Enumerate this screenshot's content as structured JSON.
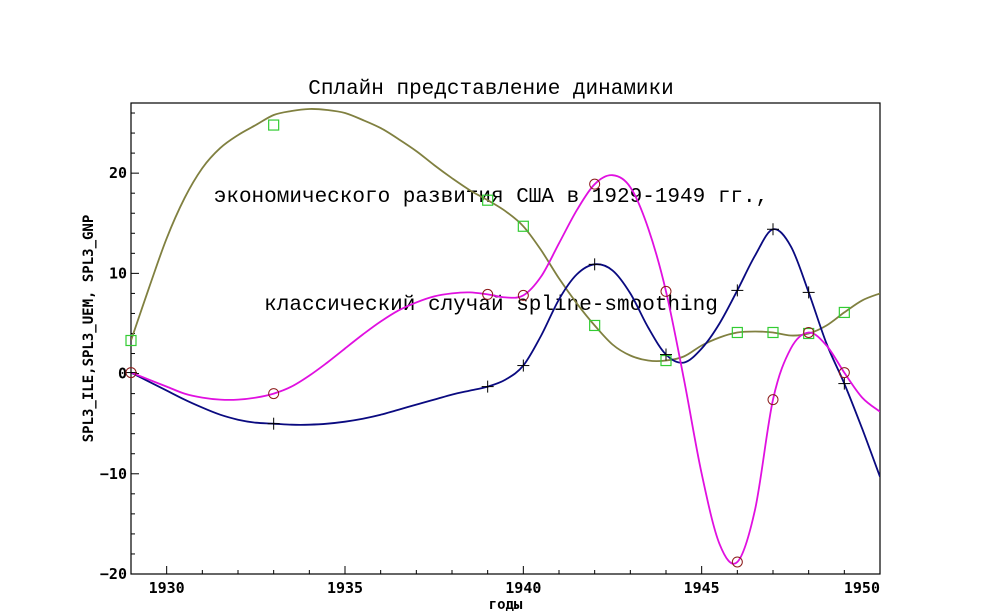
{
  "chart_data": {
    "type": "line",
    "title_lines": [
      "Сплайн представление динамики",
      "экономического развития США в 1929-1949 гг.,",
      "классический случай spline-smoothing"
    ],
    "xlabel": "годы",
    "ylabel": "SPL3_ILE,SPL3_UEM, SPL3_GNP",
    "xlim": [
      1929,
      1950
    ],
    "ylim": [
      -20,
      27
    ],
    "x_ticks": [
      1930,
      1935,
      1940,
      1945,
      1950
    ],
    "y_ticks": [
      -20,
      -10,
      0,
      10,
      20
    ],
    "y_tick_labels": [
      "−20",
      "−10",
      "0",
      "10",
      "20"
    ],
    "grid": false,
    "series": [
      {
        "color": "#808040",
        "marker": "square",
        "marker_color": "#33cc33",
        "markers_x": [
          1929,
          1933,
          1939,
          1940,
          1942,
          1944,
          1946,
          1947,
          1948,
          1949
        ],
        "markers_y": [
          3.3,
          24.8,
          17.3,
          14.7,
          4.8,
          1.3,
          4.1,
          4.1,
          4.0,
          6.1
        ],
        "curve_x": [
          1929,
          1929.5,
          1930,
          1930.5,
          1931,
          1931.5,
          1932,
          1932.5,
          1933,
          1933.5,
          1934,
          1934.5,
          1935,
          1935.5,
          1936,
          1936.5,
          1937,
          1937.5,
          1938,
          1938.5,
          1939,
          1939.5,
          1940,
          1940.5,
          1941,
          1941.5,
          1942,
          1942.5,
          1943,
          1943.5,
          1944,
          1944.5,
          1945,
          1945.5,
          1946,
          1946.5,
          1947,
          1947.5,
          1948,
          1948.5,
          1949,
          1949.5,
          1950
        ],
        "curve_y": [
          3.3,
          8.5,
          13.5,
          17.5,
          20.5,
          22.5,
          23.8,
          24.8,
          25.8,
          26.2,
          26.4,
          26.3,
          26.0,
          25.3,
          24.5,
          23.4,
          22.2,
          20.8,
          19.5,
          18.3,
          17.3,
          16.2,
          14.7,
          12.3,
          9.5,
          7.0,
          4.8,
          2.9,
          1.8,
          1.3,
          1.3,
          1.7,
          2.8,
          3.6,
          4.1,
          4.2,
          4.1,
          3.8,
          4.0,
          4.8,
          6.1,
          7.3,
          8.0
        ]
      },
      {
        "color": "#0a0a80",
        "marker": "plus",
        "marker_color": "#000000",
        "markers_x": [
          1929,
          1933,
          1939,
          1940,
          1942,
          1944,
          1946,
          1947,
          1948,
          1949
        ],
        "markers_y": [
          0.1,
          -5.0,
          -1.3,
          0.8,
          10.9,
          1.9,
          8.3,
          14.4,
          8.1,
          -1.0
        ],
        "curve_x": [
          1929,
          1929.5,
          1930,
          1930.5,
          1931,
          1931.5,
          1932,
          1932.5,
          1933,
          1933.5,
          1934,
          1934.5,
          1935,
          1935.5,
          1936,
          1936.5,
          1937,
          1937.5,
          1938,
          1938.5,
          1939,
          1939.5,
          1940,
          1940.5,
          1941,
          1941.5,
          1942,
          1942.5,
          1943,
          1943.5,
          1944,
          1944.5,
          1945,
          1945.5,
          1946,
          1946.5,
          1947,
          1947.5,
          1948,
          1948.5,
          1949,
          1949.5,
          1950
        ],
        "curve_y": [
          0.1,
          -0.8,
          -1.7,
          -2.6,
          -3.4,
          -4.1,
          -4.6,
          -4.9,
          -5.0,
          -5.1,
          -5.1,
          -5.0,
          -4.8,
          -4.5,
          -4.1,
          -3.6,
          -3.1,
          -2.6,
          -2.1,
          -1.7,
          -1.3,
          -0.6,
          0.8,
          3.8,
          7.4,
          9.9,
          10.9,
          10.3,
          8.0,
          4.6,
          1.9,
          1.1,
          2.5,
          5.0,
          8.3,
          11.8,
          14.4,
          12.7,
          8.1,
          3.0,
          -1.0,
          -5.5,
          -10.3
        ]
      },
      {
        "color": "#e010e0",
        "marker": "circle",
        "marker_color": "#8b1a1a",
        "markers_x": [
          1929,
          1933,
          1939,
          1940,
          1942,
          1944,
          1946,
          1947,
          1948,
          1949
        ],
        "markers_y": [
          0.1,
          -2.0,
          7.9,
          7.8,
          18.9,
          8.2,
          -18.8,
          -2.6,
          4.1,
          0.1
        ],
        "curve_x": [
          1929,
          1929.5,
          1930,
          1930.5,
          1931,
          1931.5,
          1932,
          1932.5,
          1933,
          1933.5,
          1934,
          1934.5,
          1935,
          1935.5,
          1936,
          1936.5,
          1937,
          1937.5,
          1938,
          1938.5,
          1939,
          1939.5,
          1940,
          1940.5,
          1941,
          1941.5,
          1942,
          1942.5,
          1943,
          1943.5,
          1944,
          1944.5,
          1945,
          1945.5,
          1946,
          1946.5,
          1947,
          1947.5,
          1948,
          1948.5,
          1949,
          1949.5,
          1950
        ],
        "curve_y": [
          0.1,
          -0.6,
          -1.3,
          -2.0,
          -2.4,
          -2.6,
          -2.6,
          -2.4,
          -2.0,
          -1.3,
          -0.2,
          1.1,
          2.5,
          3.9,
          5.2,
          6.3,
          7.1,
          7.7,
          8.0,
          8.1,
          7.9,
          7.6,
          7.8,
          9.7,
          13.0,
          16.3,
          18.9,
          19.8,
          18.6,
          14.5,
          8.2,
          -0.5,
          -10.0,
          -17.0,
          -18.8,
          -13.5,
          -2.6,
          2.5,
          4.1,
          2.8,
          0.1,
          -2.4,
          -3.8
        ]
      }
    ]
  }
}
